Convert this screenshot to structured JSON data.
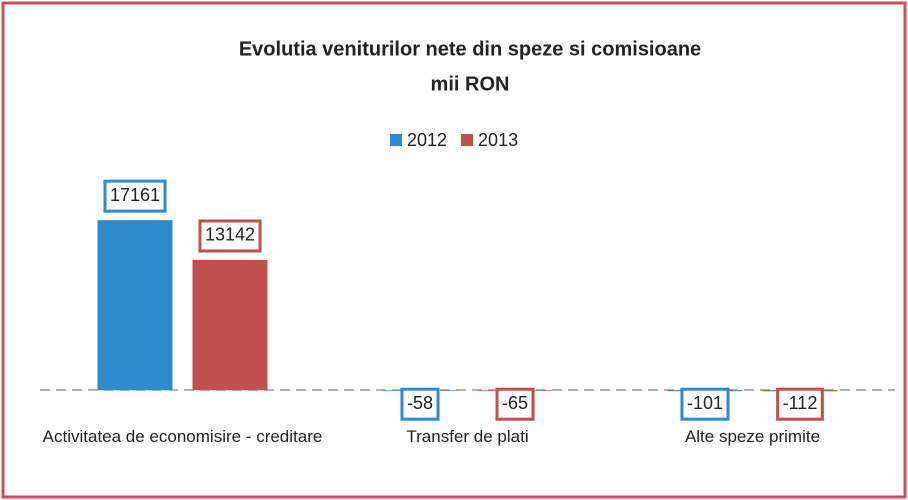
{
  "chart_data": {
    "type": "bar",
    "title": "Evolutia veniturilor nete din speze si comisioane",
    "subtitle": "mii RON",
    "categories": [
      "Activitatea de economisire - creditare",
      "Transfer de plati",
      "Alte speze primite"
    ],
    "series": [
      {
        "name": "2012",
        "color": "#2e8bc9",
        "values": [
          17161,
          -58,
          -101
        ]
      },
      {
        "name": "2013",
        "color": "#c0504d",
        "values": [
          13142,
          -65,
          -112
        ]
      }
    ],
    "ylim": [
      -2000,
      20000
    ],
    "legend": "top"
  }
}
